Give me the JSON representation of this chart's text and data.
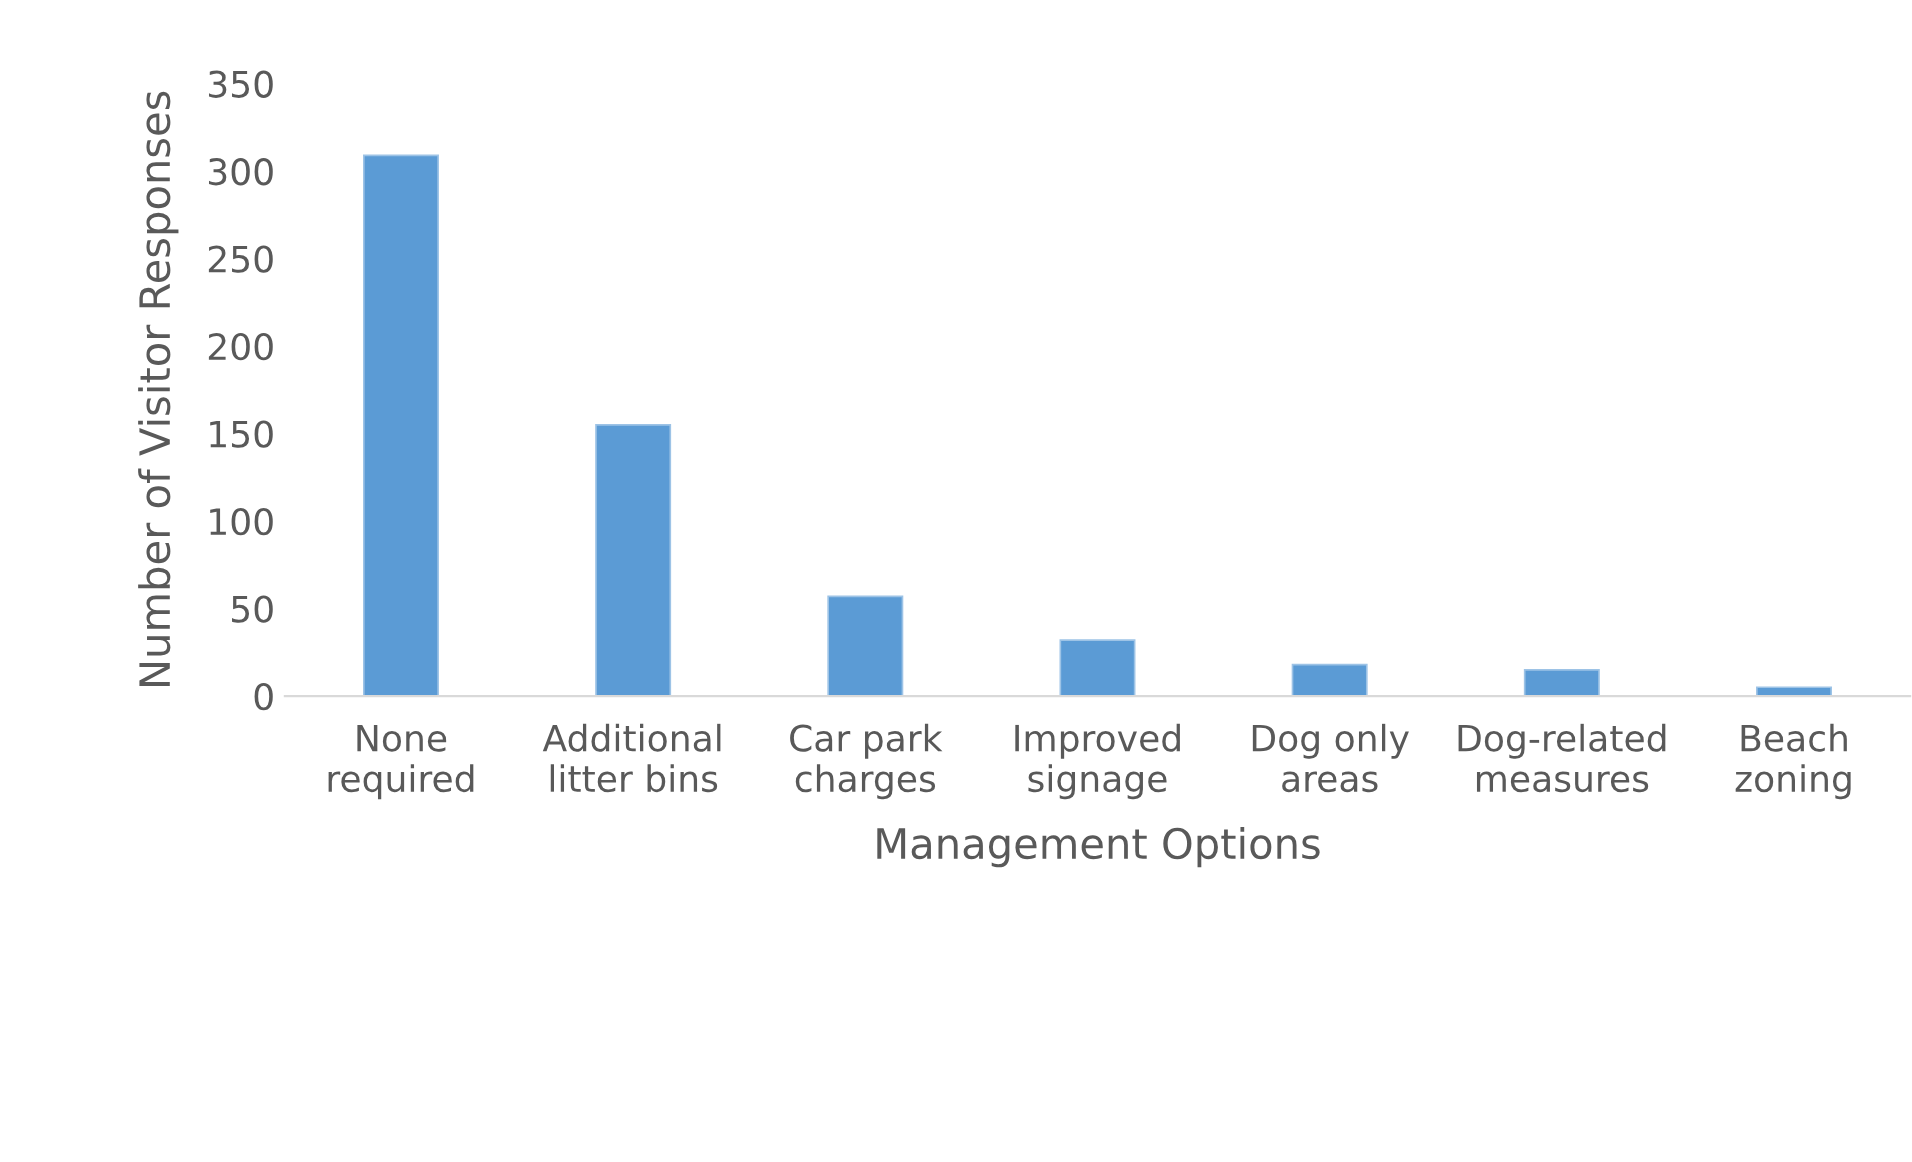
{
  "chart_data": {
    "type": "bar",
    "xlabel": "Management Options",
    "ylabel": "Number of Visitor Responses",
    "categories": [
      "None\nrequired",
      "Additional\nlitter bins",
      "Car park\ncharges",
      "Improved\nsignage",
      "Dog only\nareas",
      "Dog-related\nmeasures",
      "Beach\nzoning"
    ],
    "values": [
      309,
      155,
      57,
      32,
      18,
      15,
      5
    ],
    "color": "#5b9bd5",
    "ylim": [
      0,
      350
    ],
    "yticks": [
      0,
      50,
      100,
      150,
      200,
      250,
      300,
      350
    ],
    "grid": false
  }
}
